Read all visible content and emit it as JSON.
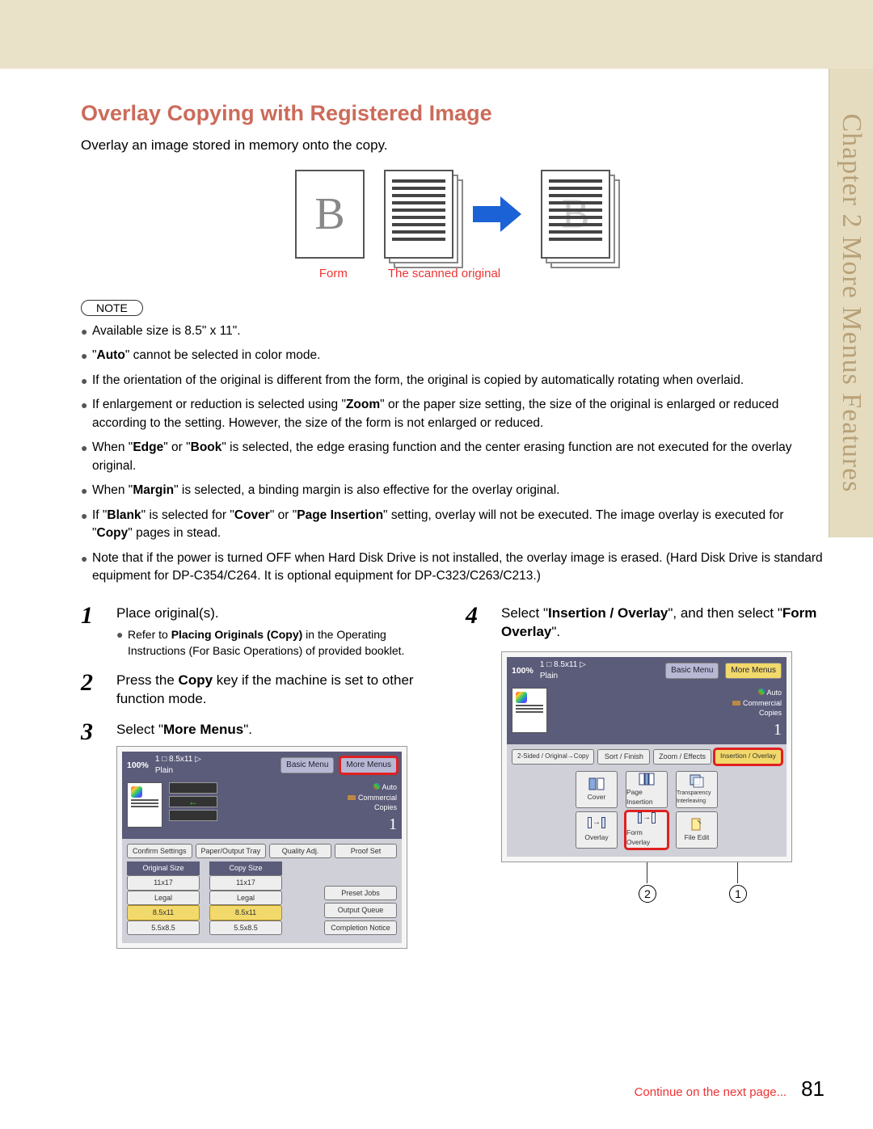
{
  "colors": {
    "heading": "#cc6b5a",
    "side_tab_bg": "#e5dcc0",
    "side_text": "#b8a177",
    "accent_red": "#e33",
    "highlight_box": "#e02020",
    "top_band": "#eae1c9"
  },
  "side_tab": "Chapter 2   More Menus Features",
  "title": "Overlay Copying with Registered Image",
  "intro": "Overlay an image stored in memory onto the copy.",
  "illus": {
    "b_glyph": "B",
    "form_caption": "Form",
    "scanned_caption": "The scanned original"
  },
  "note_label": "NOTE",
  "notes": [
    {
      "parts": [
        {
          "t": "Available size is 8.5\" x 11\"."
        }
      ]
    },
    {
      "parts": [
        {
          "t": "\""
        },
        {
          "t": "Auto",
          "b": true
        },
        {
          "t": "\" cannot be selected in color mode."
        }
      ]
    },
    {
      "parts": [
        {
          "t": "If the orientation of the original is different from the form, the original is copied by automatically rotating when overlaid."
        }
      ]
    },
    {
      "parts": [
        {
          "t": "If enlargement or reduction is selected using \""
        },
        {
          "t": "Zoom",
          "b": true
        },
        {
          "t": "\" or the paper size setting, the size of the original is enlarged or reduced according to the setting. However, the size of the form is not enlarged or reduced."
        }
      ]
    },
    {
      "parts": [
        {
          "t": "When \""
        },
        {
          "t": "Edge",
          "b": true
        },
        {
          "t": "\" or \""
        },
        {
          "t": "Book",
          "b": true
        },
        {
          "t": "\" is selected, the edge erasing function and the center erasing function are not executed for the overlay original."
        }
      ]
    },
    {
      "parts": [
        {
          "t": "When \""
        },
        {
          "t": "Margin",
          "b": true
        },
        {
          "t": "\" is selected, a binding margin is also effective for the overlay original."
        }
      ]
    },
    {
      "parts": [
        {
          "t": "If \""
        },
        {
          "t": "Blank",
          "b": true
        },
        {
          "t": "\" is selected for \""
        },
        {
          "t": "Cover",
          "b": true
        },
        {
          "t": "\" or \""
        },
        {
          "t": "Page Insertion",
          "b": true
        },
        {
          "t": "\" setting, overlay will not be executed. The image overlay is executed for \""
        },
        {
          "t": "Copy",
          "b": true
        },
        {
          "t": "\" pages in stead."
        }
      ]
    },
    {
      "parts": [
        {
          "t": "Note that if the power is turned OFF when Hard Disk Drive is not installed, the overlay image is erased. (Hard Disk Drive is standard equipment for DP-C354/C264. It is optional equipment for DP-C323/C263/C213.)"
        }
      ]
    }
  ],
  "steps": {
    "s1": {
      "num": "1",
      "text_parts": [
        {
          "t": "Place original(s)."
        }
      ],
      "sub_parts": [
        {
          "t": "Refer to "
        },
        {
          "t": "Placing Originals (Copy)",
          "b": true
        },
        {
          "t": " in the Operating Instructions (For Basic Operations) of provided booklet."
        }
      ]
    },
    "s2": {
      "num": "2",
      "text_parts": [
        {
          "t": "Press the "
        },
        {
          "t": "Copy",
          "b": true
        },
        {
          "t": " key if the machine is set to other function mode."
        }
      ]
    },
    "s3": {
      "num": "3",
      "text_parts": [
        {
          "t": "Select \""
        },
        {
          "t": "More Menus",
          "b": true
        },
        {
          "t": "\"."
        }
      ]
    },
    "s4": {
      "num": "4",
      "text_parts": [
        {
          "t": "Select \""
        },
        {
          "t": "Insertion / Overlay",
          "b": true
        },
        {
          "t": "\", and then select \""
        },
        {
          "t": "Form Overlay",
          "b": true
        },
        {
          "t": "\"."
        }
      ]
    }
  },
  "screenshot1": {
    "zoom": "100%",
    "paper_info": "1 □ 8.5x11 ▷",
    "plain": "Plain",
    "tabs": {
      "basic": "Basic Menu",
      "more": "More Menus"
    },
    "auto_label": "Auto",
    "commercial": "Commercial",
    "copies_label": "Copies",
    "copies_value": "1",
    "row1": {
      "a": "Confirm Settings",
      "b": "Paper/Output Tray",
      "c": "Quality Adj.",
      "d": "Proof Set"
    },
    "section": {
      "orig": "Original Size",
      "copy": "Copy Size"
    },
    "sizes": {
      "a": "11x17",
      "b": "Legal",
      "c": "8.5x11",
      "d": "5.5x8.5"
    },
    "preset": "Preset Jobs",
    "queue": "Output Queue",
    "notice": "Completion Notice"
  },
  "screenshot2": {
    "zoom": "100%",
    "paper_info": "1 □ 8.5x11 ▷",
    "plain": "Plain",
    "tabs": {
      "basic": "Basic Menu",
      "more": "More Menus"
    },
    "auto_label": "Auto",
    "commercial": "Commercial",
    "copies_label": "Copies",
    "copies_value": "1",
    "tabrow": {
      "a": "2-Sided / Original→Copy",
      "b": "Sort / Finish",
      "c": "Zoom / Effects",
      "d": "Insertion / Overlay"
    },
    "icons": {
      "cover": "Cover",
      "pageins": "Page Insertion",
      "trans": "Transparency Interleaving",
      "overlay": "Overlay",
      "formov": "Form Overlay",
      "file": "File Edit"
    }
  },
  "markers": {
    "m1": "1",
    "m2": "2"
  },
  "footer": {
    "continue": "Continue on the next page...",
    "page": "81"
  }
}
